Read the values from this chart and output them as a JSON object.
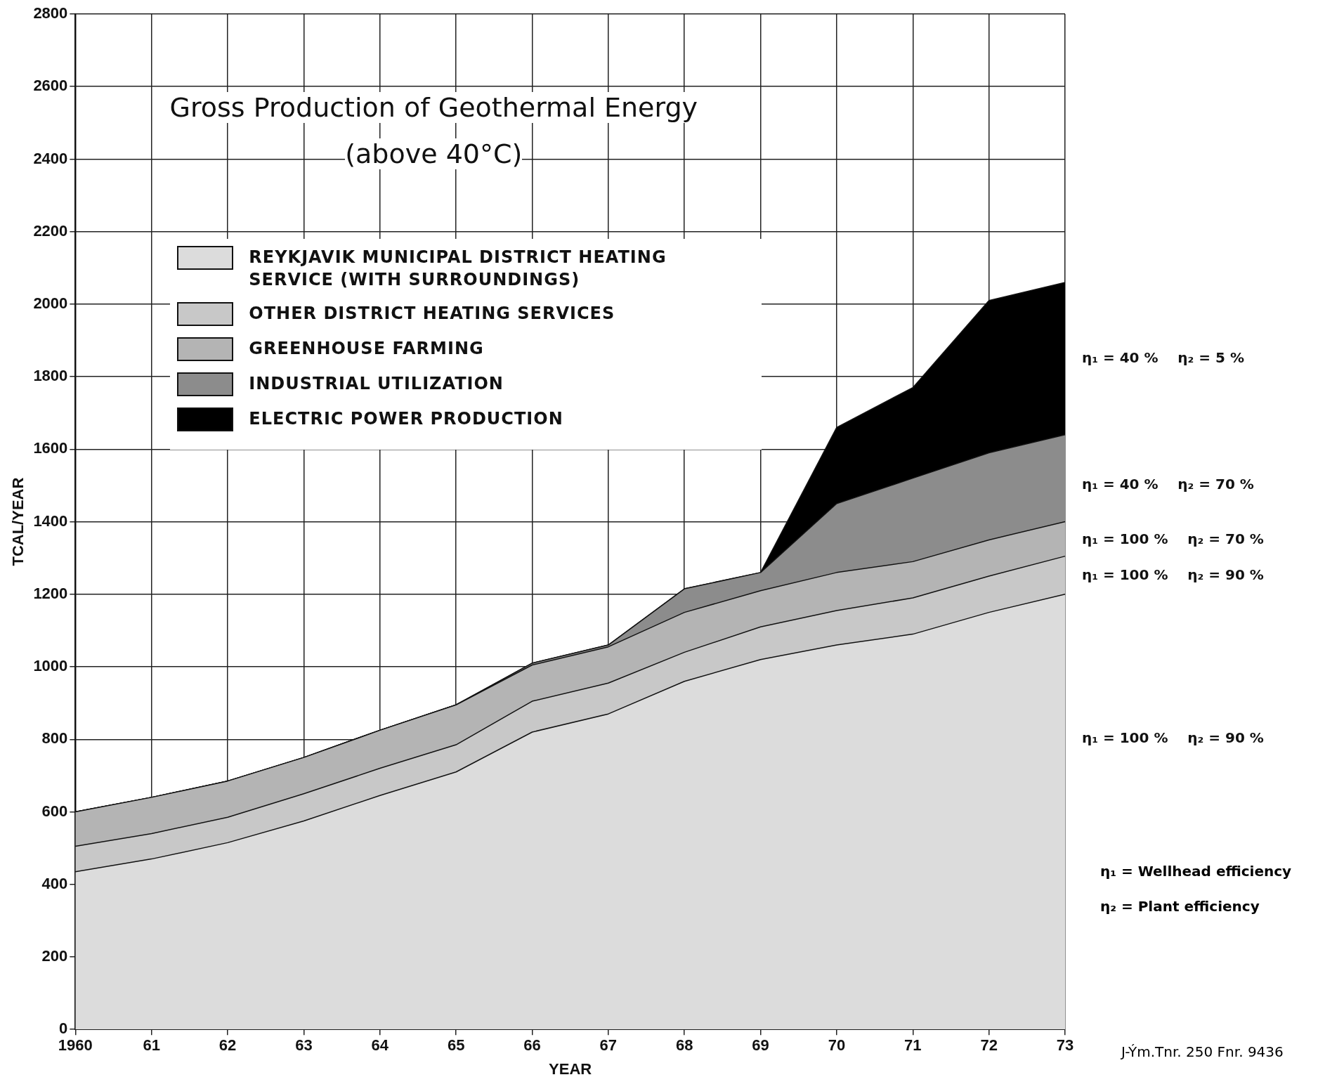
{
  "chart_data": {
    "type": "area",
    "title": "Gross Production of Geothermal Energy",
    "subtitle": "(above 40°C)",
    "xlabel": "YEAR",
    "ylabel": "TCAL/YEAR",
    "categories": [
      "1960",
      "61",
      "62",
      "63",
      "64",
      "65",
      "66",
      "67",
      "68",
      "69",
      "70",
      "71",
      "72",
      "73"
    ],
    "stacked": true,
    "ylim": [
      0,
      2800
    ],
    "yticks": [
      0,
      200,
      400,
      600,
      800,
      1000,
      1200,
      1400,
      1600,
      1800,
      2000,
      2200,
      2400,
      2600,
      2800
    ],
    "grid": true,
    "legend": "top left",
    "marker": "none",
    "series": [
      {
        "name": "REYKJAVIK MUNICIPAL DISTRICT HEATING SERVICE (WITH SURROUNDINGS)",
        "color": "#dcdcdc",
        "values": [
          435,
          470,
          515,
          575,
          645,
          710,
          820,
          870,
          960,
          1020,
          1060,
          1090,
          1150,
          1200
        ]
      },
      {
        "name": "OTHER DISTRICT HEATING SERVICES",
        "color": "#c8c8c8",
        "values": [
          70,
          70,
          70,
          75,
          75,
          75,
          85,
          85,
          80,
          90,
          95,
          100,
          100,
          105
        ]
      },
      {
        "name": "GREENHOUSE FARMING",
        "color": "#b4b4b4",
        "values": [
          95,
          100,
          100,
          100,
          105,
          110,
          100,
          100,
          110,
          100,
          105,
          100,
          100,
          95
        ]
      },
      {
        "name": "INDUSTRIAL UTILIZATION",
        "color": "#8c8c8c",
        "values": [
          0,
          0,
          0,
          0,
          0,
          0,
          5,
          5,
          65,
          50,
          190,
          230,
          240,
          240
        ]
      },
      {
        "name": "ELECTRIC POWER PRODUCTION",
        "color": "#000000",
        "values": [
          0,
          0,
          0,
          0,
          0,
          0,
          0,
          0,
          0,
          0,
          210,
          250,
          420,
          420
        ]
      }
    ],
    "annotations": [
      {
        "text": "η₁ = 40 %    η₂ = 5 %",
        "x": "73",
        "y": 1850
      },
      {
        "text": "η₁ = 40 %    η₂ = 70 %",
        "x": "73",
        "y": 1500
      },
      {
        "text": "η₁ = 100 %    η₂ = 70 %",
        "x": "73",
        "y": 1350
      },
      {
        "text": "η₁ = 100 %    η₂ = 90 %",
        "x": "73",
        "y": 1250
      },
      {
        "text": "η₁ = 100 %    η₂ = 90 %",
        "x": "73",
        "y": 800
      },
      "η₁ = Wellhead efficiency",
      "η₂ = Plant efficiency",
      "J-Ým.Tnr. 250 Fnr. 9436"
    ]
  }
}
